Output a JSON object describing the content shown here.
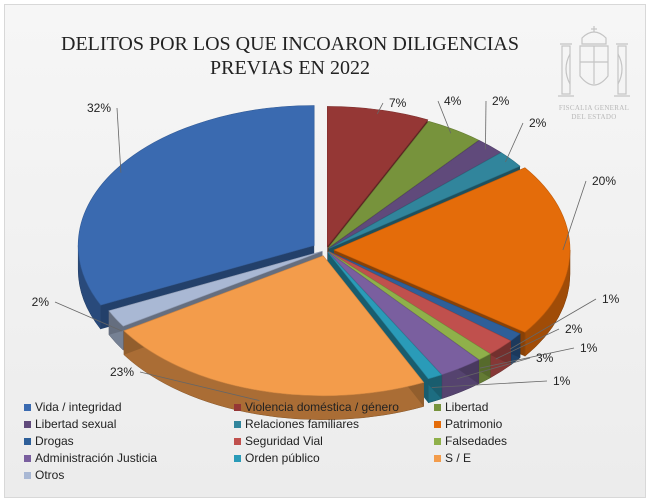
{
  "title": {
    "line1": "DELITOS POR LOS QUE INCOARON DILIGENCIAS",
    "line2": "PREVIAS EN 2022"
  },
  "seal": {
    "line1": "FISCALIA GENERAL",
    "line2": "DEL ESTADO"
  },
  "colors": {
    "text": "#222222",
    "leader": "#666666"
  },
  "chart_data": {
    "type": "pie",
    "style": "3d-exploded",
    "title": "DELITOS POR LOS QUE INCOARON DILIGENCIAS PREVIAS EN 2022",
    "legend_position": "bottom",
    "slices": [
      {
        "label": "Violencia doméstica / género",
        "value": 7,
        "display": "7%",
        "color": "#953735"
      },
      {
        "label": "Libertad",
        "value": 4,
        "display": "4%",
        "color": "#77933c"
      },
      {
        "label": "Libertad sexual",
        "value": 2,
        "display": "2%",
        "color": "#604a7b"
      },
      {
        "label": "Relaciones familiares",
        "value": 2,
        "display": "2%",
        "color": "#31859c"
      },
      {
        "label": "Patrimonio",
        "value": 20,
        "display": "20%",
        "color": "#e46c0a"
      },
      {
        "label": "Drogas",
        "value": 1,
        "display": "1%",
        "color": "#2e5f99"
      },
      {
        "label": "Seguridad Vial",
        "value": 2,
        "display": "2%",
        "color": "#c0504d"
      },
      {
        "label": "Falsedades",
        "value": 1,
        "display": "1%",
        "color": "#8fb04a"
      },
      {
        "label": "Administración Justicia",
        "value": 3,
        "display": "3%",
        "color": "#7a5f9f"
      },
      {
        "label": "Orden público",
        "value": 1,
        "display": "1%",
        "color": "#2a9bb8"
      },
      {
        "label": "S / E",
        "value": 23,
        "display": "23%",
        "color": "#f39c4b"
      },
      {
        "label": "Otros",
        "value": 2,
        "display": "2%",
        "color": "#a9b8d4"
      },
      {
        "label": "Vida / integridad",
        "value": 32,
        "display": "32%",
        "color": "#3a6ab0"
      }
    ]
  },
  "legend": [
    {
      "label": "Vida / integridad",
      "color": "#3a6ab0"
    },
    {
      "label": "Violencia doméstica / género",
      "color": "#953735"
    },
    {
      "label": "Libertad",
      "color": "#77933c"
    },
    {
      "label": "Libertad sexual",
      "color": "#604a7b"
    },
    {
      "label": "Relaciones familiares",
      "color": "#31859c"
    },
    {
      "label": "Patrimonio",
      "color": "#e46c0a"
    },
    {
      "label": "Drogas",
      "color": "#2e5f99"
    },
    {
      "label": "Seguridad Vial",
      "color": "#c0504d"
    },
    {
      "label": "Falsedades",
      "color": "#8fb04a"
    },
    {
      "label": "Administración Justicia",
      "color": "#7a5f9f"
    },
    {
      "label": "Orden público",
      "color": "#2a9bb8"
    },
    {
      "label": "S / E",
      "color": "#f39c4b"
    },
    {
      "label": "Otros",
      "color": "#a9b8d4"
    }
  ]
}
